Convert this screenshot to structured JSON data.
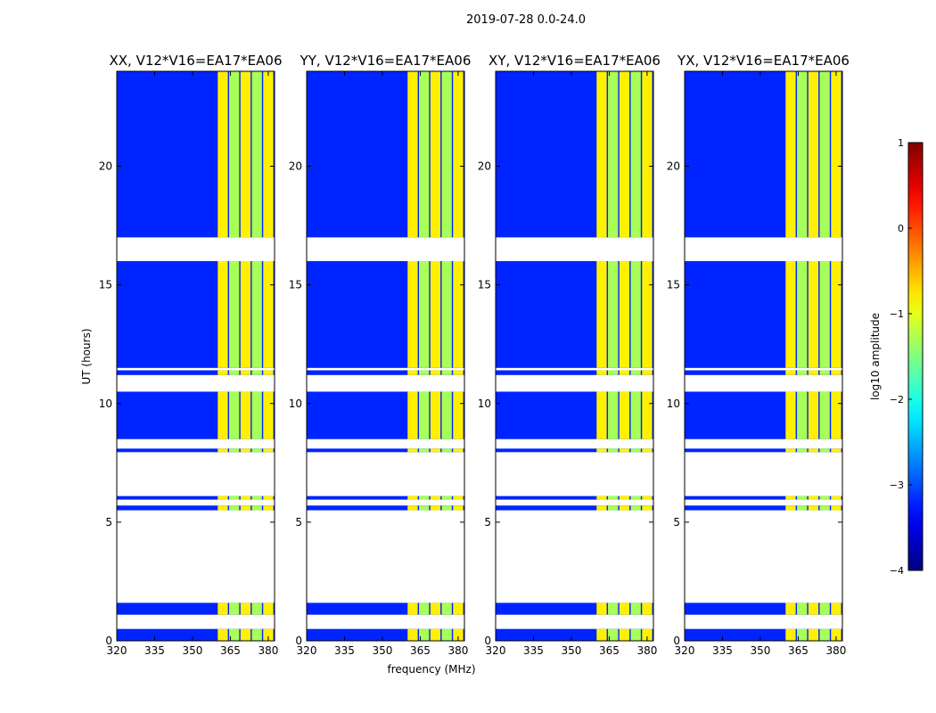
{
  "figure_title": "2019-07-28 0.0-24.0",
  "chart_data": {
    "type": "heatmap",
    "title": "2019-07-28 0.0-24.0",
    "xlabel": "frequency (MHz)",
    "ylabel": "UT (hours)",
    "xlim": [
      320,
      382.5
    ],
    "ylim": [
      0,
      24
    ],
    "xticks": [
      320,
      335,
      350,
      365,
      380
    ],
    "yticks": [
      0,
      5,
      10,
      15,
      20
    ],
    "panels": [
      {
        "title": "XX, V12*V16=EA17*EA06"
      },
      {
        "title": "YY, V12*V16=EA17*EA06"
      },
      {
        "title": "XY, V12*V16=EA17*EA06"
      },
      {
        "title": "YX, V12*V16=EA17*EA06"
      }
    ],
    "colorbar": {
      "label": "log10 amplitude",
      "range": [
        -4,
        1
      ],
      "ticks": [
        "1",
        "0",
        "−1",
        "−2",
        "−3",
        "−4"
      ],
      "colormap": "jet"
    },
    "data_time_ranges_hours": [
      [
        0.0,
        0.5
      ],
      [
        1.1,
        1.6
      ],
      [
        5.5,
        5.7
      ],
      [
        5.95,
        6.1
      ],
      [
        7.95,
        8.1
      ],
      [
        8.5,
        10.5
      ],
      [
        11.2,
        11.4
      ],
      [
        11.5,
        16.0
      ],
      [
        17.0,
        24.0
      ]
    ],
    "rfi_band_blocks_mhz": [
      [
        360,
        364
      ],
      [
        364.5,
        368.5
      ],
      [
        369,
        373
      ],
      [
        373.5,
        377.5
      ],
      [
        378,
        382
      ]
    ],
    "typical_log10_amplitude": {
      "background": -3.2,
      "rfi_bands": -1.0
    }
  }
}
